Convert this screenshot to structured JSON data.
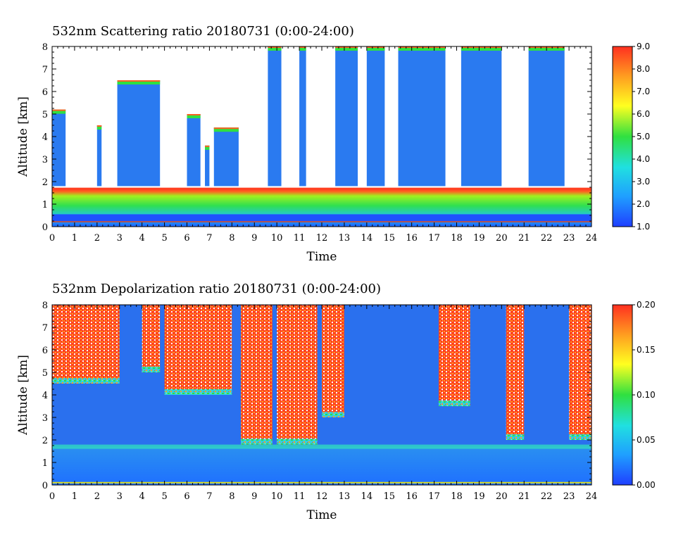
{
  "chart_data": [
    {
      "type": "heatmap",
      "title": "532nm Scattering ratio  20180731 (0:00-24:00)",
      "xlabel": "Time",
      "ylabel": "Altitude [km]",
      "xlim": [
        0,
        24
      ],
      "ylim": [
        0,
        8
      ],
      "x_ticks": [
        "0",
        "1",
        "2",
        "3",
        "4",
        "5",
        "6",
        "7",
        "8",
        "9",
        "10",
        "11",
        "12",
        "13",
        "14",
        "15",
        "16",
        "17",
        "18",
        "19",
        "20",
        "21",
        "22",
        "23",
        "24"
      ],
      "y_ticks": [
        "0",
        "1",
        "2",
        "3",
        "4",
        "5",
        "6",
        "7",
        "8"
      ],
      "colorbar": {
        "min": 1.0,
        "max": 9.0,
        "ticks": [
          "1.0",
          "2.0",
          "3.0",
          "4.0",
          "5.0",
          "6.0",
          "7.0",
          "8.0",
          "9.0"
        ],
        "colors": [
          "#1f3fff",
          "#1fa0ff",
          "#20e0e0",
          "#30e040",
          "#ffff20",
          "#ffa020",
          "#ff3020"
        ]
      },
      "boundary_layer_top_km": 1.7,
      "cloud_bands": [
        {
          "start_h": 0.0,
          "end_h": 0.6,
          "base_km": 1.8,
          "top_km": 5.2
        },
        {
          "start_h": 2.0,
          "end_h": 2.2,
          "base_km": 1.8,
          "top_km": 4.5
        },
        {
          "start_h": 2.9,
          "end_h": 4.8,
          "base_km": 1.8,
          "top_km": 6.5
        },
        {
          "start_h": 6.0,
          "end_h": 6.6,
          "base_km": 1.8,
          "top_km": 5.0
        },
        {
          "start_h": 6.8,
          "end_h": 7.0,
          "base_km": 1.8,
          "top_km": 3.6
        },
        {
          "start_h": 7.2,
          "end_h": 8.3,
          "base_km": 1.8,
          "top_km": 4.4
        },
        {
          "start_h": 9.6,
          "end_h": 10.2,
          "base_km": 1.8,
          "top_km": 8.0
        },
        {
          "start_h": 11.0,
          "end_h": 11.3,
          "base_km": 1.8,
          "top_km": 8.0
        },
        {
          "start_h": 12.6,
          "end_h": 13.6,
          "base_km": 1.8,
          "top_km": 8.0
        },
        {
          "start_h": 14.0,
          "end_h": 14.8,
          "base_km": 1.8,
          "top_km": 8.0
        },
        {
          "start_h": 15.4,
          "end_h": 17.5,
          "base_km": 1.8,
          "top_km": 8.0
        },
        {
          "start_h": 18.2,
          "end_h": 20.0,
          "base_km": 1.8,
          "top_km": 8.0
        },
        {
          "start_h": 21.2,
          "end_h": 22.8,
          "base_km": 1.8,
          "top_km": 8.0
        }
      ]
    },
    {
      "type": "heatmap",
      "title": "532nm Depolarization ratio  20180731 (0:00-24:00)",
      "xlabel": "Time",
      "ylabel": "Altitude [km]",
      "xlim": [
        0,
        24
      ],
      "ylim": [
        0,
        8
      ],
      "x_ticks": [
        "0",
        "1",
        "2",
        "3",
        "4",
        "5",
        "6",
        "7",
        "8",
        "9",
        "10",
        "11",
        "12",
        "13",
        "14",
        "15",
        "16",
        "17",
        "18",
        "19",
        "20",
        "21",
        "22",
        "23",
        "24"
      ],
      "y_ticks": [
        "0",
        "1",
        "2",
        "3",
        "4",
        "5",
        "6",
        "7",
        "8"
      ],
      "colorbar": {
        "min": 0.0,
        "max": 0.2,
        "ticks": [
          "0.00",
          "0.05",
          "0.10",
          "0.15",
          "0.20"
        ],
        "colors": [
          "#1f3fff",
          "#1fa0ff",
          "#20e0e0",
          "#30e040",
          "#ffff20",
          "#ffa020",
          "#ff3020"
        ]
      },
      "boundary_layer_top_km": 1.7,
      "high_depol_bands": [
        {
          "start_h": 0.0,
          "end_h": 3.0,
          "base_km": 4.5,
          "top_km": 8.0
        },
        {
          "start_h": 4.0,
          "end_h": 4.8,
          "base_km": 5.0,
          "top_km": 8.0
        },
        {
          "start_h": 5.0,
          "end_h": 8.0,
          "base_km": 4.0,
          "top_km": 8.0
        },
        {
          "start_h": 8.4,
          "end_h": 9.8,
          "base_km": 1.8,
          "top_km": 8.0
        },
        {
          "start_h": 10.0,
          "end_h": 11.8,
          "base_km": 1.8,
          "top_km": 8.0
        },
        {
          "start_h": 12.0,
          "end_h": 13.0,
          "base_km": 3.0,
          "top_km": 8.0
        },
        {
          "start_h": 17.2,
          "end_h": 18.6,
          "base_km": 3.5,
          "top_km": 8.0
        },
        {
          "start_h": 20.2,
          "end_h": 21.0,
          "base_km": 2.0,
          "top_km": 8.0
        },
        {
          "start_h": 23.0,
          "end_h": 24.0,
          "base_km": 2.0,
          "top_km": 8.0
        }
      ]
    }
  ]
}
